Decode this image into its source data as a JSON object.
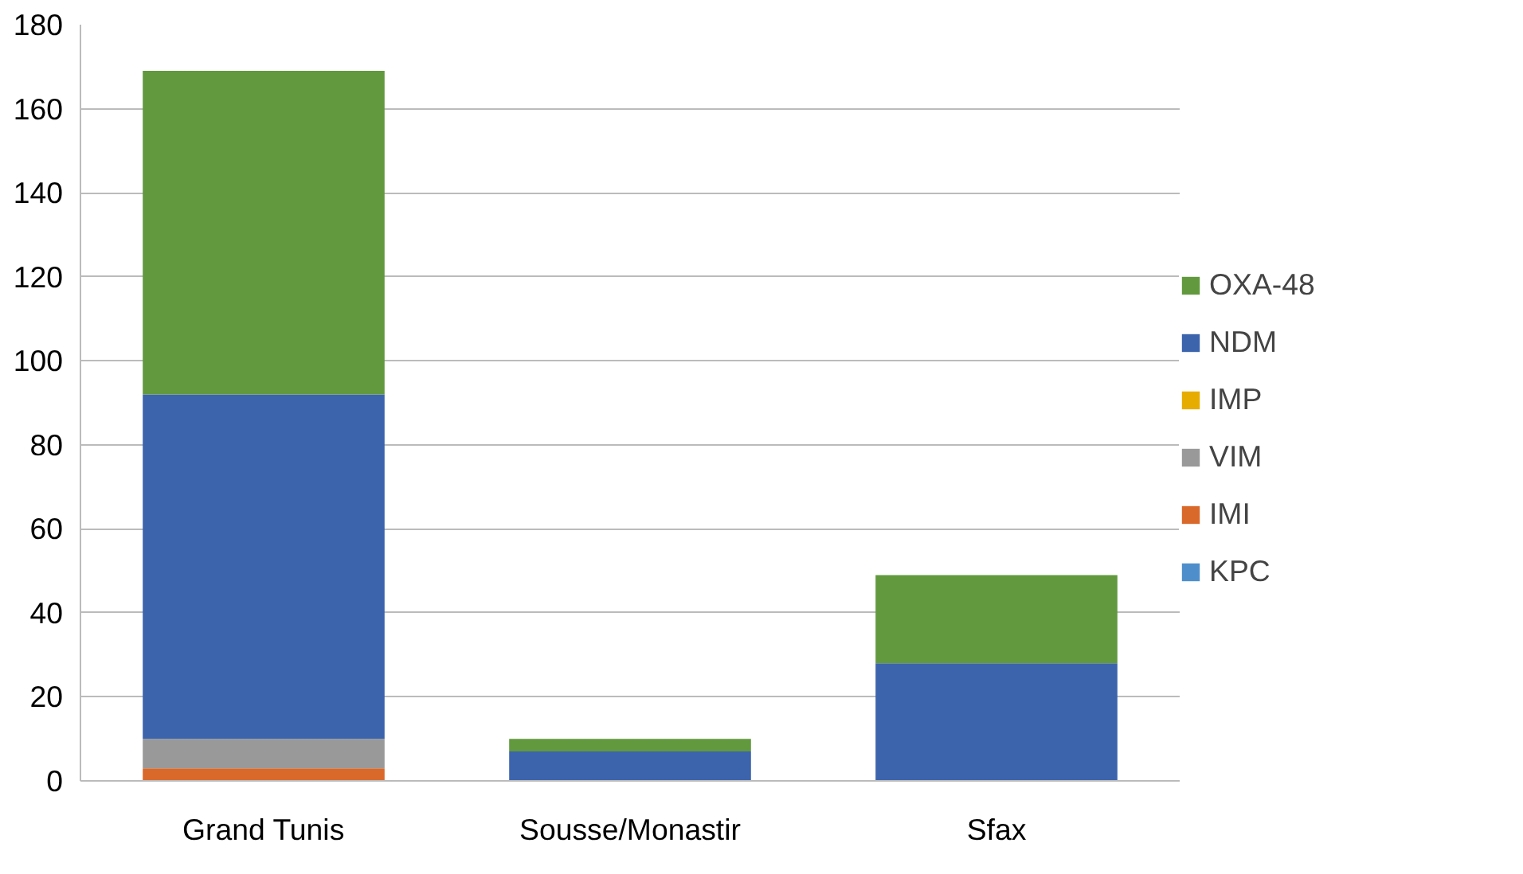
{
  "chart_data": {
    "type": "bar",
    "stacked": true,
    "categories": [
      "Grand Tunis",
      "Sousse/Monastir",
      "Sfax"
    ],
    "series": [
      {
        "name": "KPC",
        "color": "#4e8fcb",
        "values": [
          0,
          0,
          0
        ]
      },
      {
        "name": "IMI",
        "color": "#d9692a",
        "values": [
          3,
          0,
          0
        ]
      },
      {
        "name": "VIM",
        "color": "#999999",
        "values": [
          7,
          0,
          0
        ]
      },
      {
        "name": "IMP",
        "color": "#e6ac00",
        "values": [
          0,
          0,
          0
        ]
      },
      {
        "name": "NDM",
        "color": "#3c64ad",
        "values": [
          82,
          7,
          28
        ]
      },
      {
        "name": "OXA-48",
        "color": "#62993e",
        "values": [
          77,
          3,
          21
        ]
      }
    ],
    "ylim": [
      0,
      180
    ],
    "yticks": [
      0,
      20,
      40,
      60,
      80,
      100,
      120,
      140,
      160,
      180
    ],
    "grid": "y",
    "legend": "right"
  }
}
